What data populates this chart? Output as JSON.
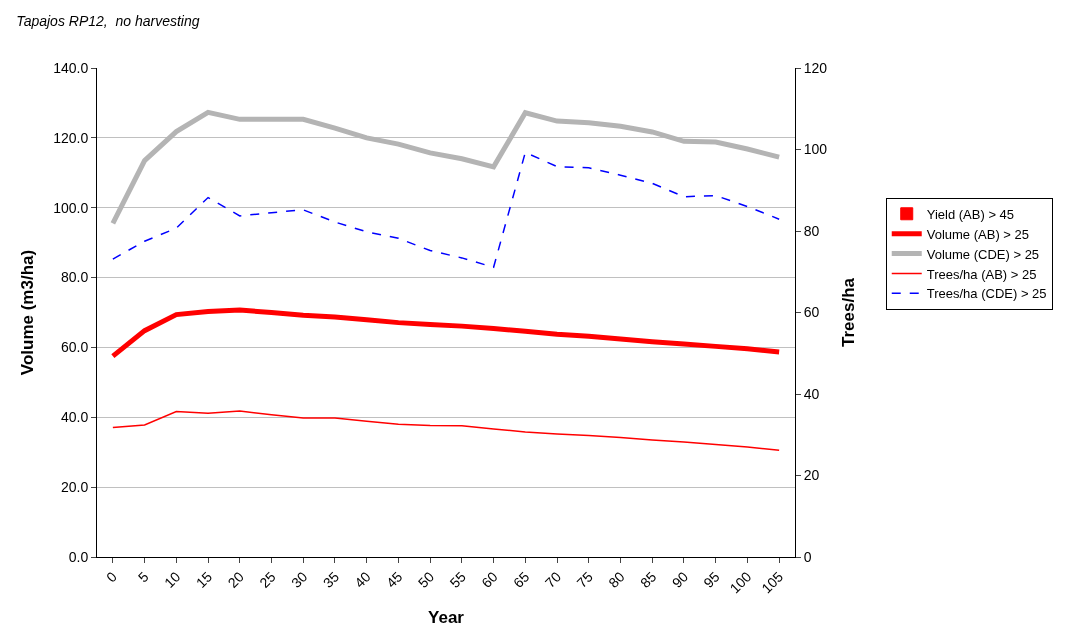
{
  "chart_data": {
    "type": "line",
    "title": "Tapajos RP12,  no harvesting",
    "xlabel": "Year",
    "ylabel": "Volume (m3/ha)",
    "y2label": "Trees/ha",
    "categories": [
      "0",
      "5",
      "10",
      "15",
      "20",
      "25",
      "30",
      "35",
      "40",
      "45",
      "50",
      "55",
      "60",
      "65",
      "70",
      "75",
      "80",
      "85",
      "90",
      "95",
      "100",
      "105"
    ],
    "series": [
      {
        "name": "Yield (AB) > 45",
        "type": "bar",
        "color": "#ff0000",
        "values": [
          null,
          null,
          null,
          null,
          null,
          null,
          null,
          null,
          null,
          null,
          null,
          null,
          null,
          null,
          null,
          null,
          null,
          null,
          null,
          null,
          null,
          null
        ]
      },
      {
        "name": "Volume (AB) > 25",
        "color": "#ff0000",
        "line_style": "solid",
        "values": [
          57.5,
          64.8,
          69.4,
          70.3,
          70.7,
          70.0,
          69.2,
          68.7,
          67.9,
          67.1,
          66.6,
          66.1,
          65.4,
          64.6,
          63.8,
          63.2,
          62.4,
          61.6,
          61.0,
          60.3,
          59.6,
          58.7
        ]
      },
      {
        "name": "Volume (CDE) > 25",
        "color": "#b4b4b4",
        "line_style": "solid",
        "values": [
          95.5,
          113.5,
          121.8,
          127.3,
          125.3,
          125.3,
          125.3,
          122.8,
          120.0,
          118.2,
          115.7,
          114.0,
          111.7,
          127.2,
          124.8,
          124.3,
          123.3,
          121.7,
          119.0,
          118.8,
          116.8,
          114.5
        ]
      },
      {
        "name": "Trees/ha (AB) > 25",
        "color": "#ff0000",
        "line_style": "solid",
        "axis": "y2",
        "values": [
          31.8,
          32.4,
          35.7,
          35.3,
          35.8,
          34.9,
          34.1,
          34.1,
          33.3,
          32.6,
          32.3,
          32.2,
          31.4,
          30.7,
          30.2,
          29.8,
          29.3,
          28.7,
          28.2,
          27.6,
          27.0,
          26.2
        ]
      },
      {
        "name": "Trees/ha (CDE) > 25",
        "color": "#0000ff",
        "line_style": "dashed",
        "axis": "y2",
        "values": [
          73.1,
          77.5,
          80.7,
          88.2,
          83.7,
          84.5,
          85.2,
          82.2,
          79.8,
          78.2,
          75.2,
          73.4,
          71.1,
          99.3,
          95.8,
          95.5,
          93.7,
          91.7,
          88.4,
          88.7,
          86.0,
          82.9
        ]
      }
    ],
    "ylim": [
      0,
      140
    ],
    "yticks": [
      {
        "value": 0,
        "label": "0.0"
      },
      {
        "value": 20,
        "label": "20.0"
      },
      {
        "value": 40,
        "label": "40.0"
      },
      {
        "value": 60,
        "label": "60.0"
      },
      {
        "value": 80,
        "label": "80.0"
      },
      {
        "value": 100,
        "label": "100.0"
      },
      {
        "value": 120,
        "label": "120.0"
      },
      {
        "value": 140,
        "label": "140.0"
      }
    ],
    "y2lim": [
      0,
      120
    ],
    "y2ticks": [
      0,
      20,
      40,
      60,
      80,
      100,
      120
    ],
    "grid": "y",
    "legend": "right",
    "marker": "none"
  }
}
